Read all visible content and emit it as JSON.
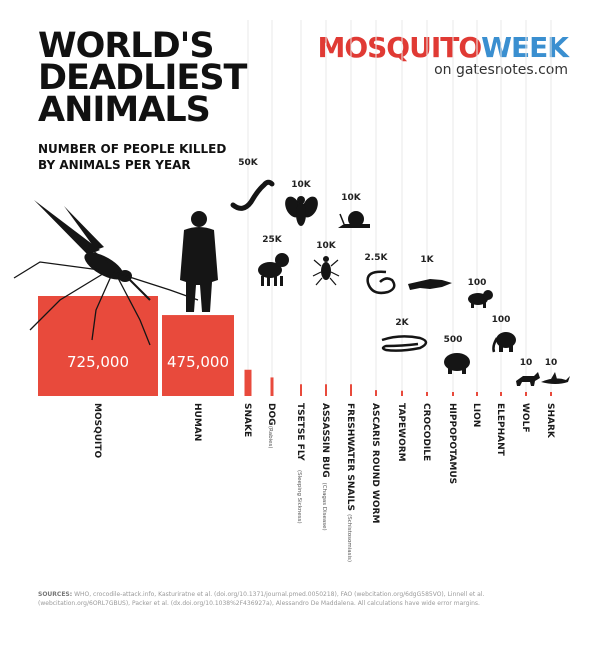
{
  "header": {
    "title_lines": [
      "WORLD'S",
      "DEADLIEST",
      "ANIMALS"
    ],
    "subtitle_lines": [
      "NUMBER OF PEOPLE KILLED",
      "BY ANIMALS PER YEAR"
    ]
  },
  "brand": {
    "part1": "MOSQUITO",
    "part2": "WEEK",
    "tagline": "on gatesnotes.com"
  },
  "colors": {
    "bar": "#e84a3c",
    "bar_dark": "#e03a34",
    "brand_blue": "#3a8fd0",
    "silhouette": "#151515",
    "stripe": "#e9e9e9"
  },
  "chart_data": {
    "type": "bar",
    "title": "",
    "xlabel": "",
    "ylabel": "",
    "categories": [
      "MOSQUITO",
      "HUMAN",
      "SNAKE",
      "DOG",
      "TSETSE FLY",
      "ASSASSIN BUG",
      "FRESHWATER SNAILS",
      "ASCARIS ROUND WORM",
      "TAPEWORM",
      "CROCODILE",
      "HIPPOPOTAMUS",
      "LION",
      "ELEPHANT",
      "WOLF",
      "SHARK"
    ],
    "category_notes": [
      "",
      "",
      "",
      "(Rabies)",
      "(Sleeping Sickness)",
      "(Chagas Disease)",
      "(Schistosomiasis)",
      "",
      "",
      "",
      "",
      "",
      "",
      "",
      ""
    ],
    "values": [
      725000,
      475000,
      50000,
      25000,
      10000,
      10000,
      10000,
      2500,
      2000,
      1000,
      500,
      100,
      100,
      10,
      10
    ],
    "value_labels": [
      "725,000",
      "475,000",
      "50K",
      "25K",
      "10K",
      "10K",
      "10K",
      "2.5K",
      "2K",
      "1K",
      "500",
      "100",
      "100",
      "10",
      "10"
    ],
    "icons": [
      "mosquito-icon",
      "human-icon",
      "snake-icon",
      "dog-icon",
      "fly-icon",
      "bug-icon",
      "snail-icon",
      "worm-icon",
      "tapeworm-icon",
      "crocodile-icon",
      "hippo-icon",
      "lion-icon",
      "elephant-icon",
      "wolf-icon",
      "shark-icon"
    ]
  },
  "footer": {
    "sources_label": "SOURCES:",
    "sources_text": "WHO, crocodile-attack.info, Kasturiratne et al. (doi.org/10.1371/journal.pmed.0050218), FAO (webcitation.org/6dgG585VO), Linnell et al. (webcitation.org/6ORL7GBUS), Packer et al. (dx.doi.org/10.1038%2F436927a), Alessandro De Maddalena. All calculations have wide error margins."
  }
}
